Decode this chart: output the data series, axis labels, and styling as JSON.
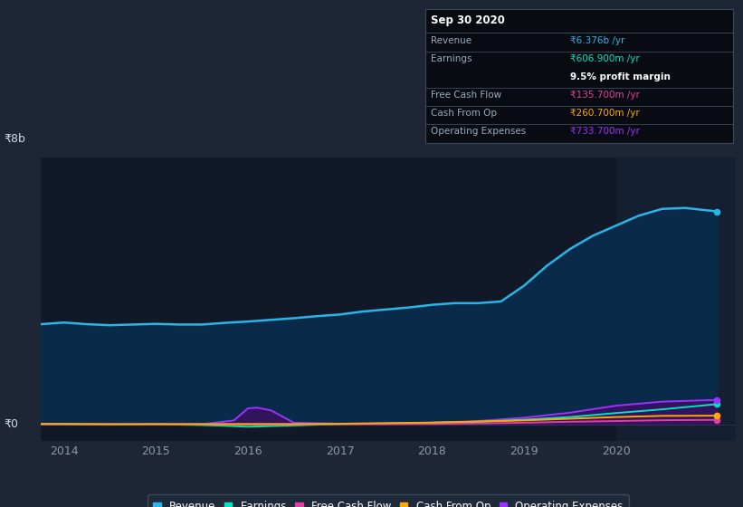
{
  "bg_color": "#1e2535",
  "plot_bg_color": "#111827",
  "grid_color": "#2a3a55",
  "title_label": "₹8b",
  "zero_label": "₹0",
  "xlabel_color": "#8899aa",
  "ylabel_color": "#ccddee",
  "x_ticks": [
    2014,
    2015,
    2016,
    2017,
    2018,
    2019,
    2020
  ],
  "y_min": -500000000.0,
  "y_max": 8000000000.0,
  "revenue_color": "#29b5e8",
  "revenue_fill_color": "#0a2a4a",
  "earnings_color": "#00e5c0",
  "fcf_color": "#e040a0",
  "cashfromop_color": "#ffaa00",
  "opex_color": "#9933ff",
  "opex_fill_color": "#3a1060",
  "highlight_bg": "#141f32",
  "legend_bg": "#1e2a3a",
  "legend_border": "#3a4a5a",
  "tooltip_bg": "#080c12",
  "tooltip_border": "#3a4a5a",
  "revenue_data": {
    "x": [
      2013.75,
      2014.0,
      2014.25,
      2014.5,
      2014.75,
      2015.0,
      2015.25,
      2015.5,
      2015.75,
      2016.0,
      2016.25,
      2016.5,
      2016.75,
      2017.0,
      2017.25,
      2017.5,
      2017.75,
      2018.0,
      2018.25,
      2018.5,
      2018.75,
      2019.0,
      2019.25,
      2019.5,
      2019.75,
      2020.0,
      2020.25,
      2020.5,
      2020.75,
      2021.1
    ],
    "y": [
      3000000000.0,
      3050000000.0,
      3000000000.0,
      2970000000.0,
      2990000000.0,
      3010000000.0,
      2990000000.0,
      2990000000.0,
      3040000000.0,
      3080000000.0,
      3130000000.0,
      3180000000.0,
      3240000000.0,
      3290000000.0,
      3380000000.0,
      3440000000.0,
      3500000000.0,
      3580000000.0,
      3630000000.0,
      3630000000.0,
      3680000000.0,
      4150000000.0,
      4750000000.0,
      5250000000.0,
      5650000000.0,
      5950000000.0,
      6250000000.0,
      6450000000.0,
      6480000000.0,
      6376000000.0
    ]
  },
  "earnings_data": {
    "x": [
      2013.75,
      2014.0,
      2014.5,
      2015.0,
      2015.5,
      2015.75,
      2016.0,
      2016.5,
      2017.0,
      2017.5,
      2018.0,
      2018.5,
      2019.0,
      2019.5,
      2020.0,
      2020.5,
      2021.1
    ],
    "y": [
      10000000.0,
      5000000.0,
      -10000000.0,
      5000000.0,
      -20000000.0,
      -40000000.0,
      -70000000.0,
      -30000000.0,
      10000000.0,
      30000000.0,
      50000000.0,
      80000000.0,
      140000000.0,
      220000000.0,
      340000000.0,
      450000000.0,
      606900000.0
    ]
  },
  "fcf_data": {
    "x": [
      2013.75,
      2014.0,
      2014.5,
      2015.0,
      2015.5,
      2016.0,
      2016.5,
      2017.0,
      2017.5,
      2018.0,
      2018.5,
      2019.0,
      2019.5,
      2020.0,
      2020.5,
      2021.1
    ],
    "y": [
      5000000.0,
      5000000.0,
      3000000.0,
      3000000.0,
      3000000.0,
      3000000.0,
      3000000.0,
      5000000.0,
      8000000.0,
      15000000.0,
      30000000.0,
      50000000.0,
      80000000.0,
      100000000.0,
      125000000.0,
      135700000.0
    ]
  },
  "cashfromop_data": {
    "x": [
      2013.75,
      2014.0,
      2014.5,
      2015.0,
      2015.5,
      2016.0,
      2016.5,
      2017.0,
      2017.5,
      2018.0,
      2018.5,
      2019.0,
      2019.5,
      2020.0,
      2020.5,
      2021.1
    ],
    "y": [
      15000000.0,
      15000000.0,
      10000000.0,
      10000000.0,
      10000000.0,
      10000000.0,
      10000000.0,
      20000000.0,
      35000000.0,
      55000000.0,
      85000000.0,
      120000000.0,
      170000000.0,
      220000000.0,
      255000000.0,
      260700000.0
    ]
  },
  "opex_data": {
    "x": [
      2013.75,
      2014.0,
      2014.5,
      2015.0,
      2015.5,
      2015.85,
      2016.0,
      2016.1,
      2016.25,
      2016.5,
      2017.0,
      2017.5,
      2018.0,
      2018.5,
      2019.0,
      2019.5,
      2020.0,
      2020.5,
      2021.1
    ],
    "y": [
      5000000.0,
      5000000.0,
      3000000.0,
      3000000.0,
      3000000.0,
      120000000.0,
      480000000.0,
      500000000.0,
      420000000.0,
      50000000.0,
      20000000.0,
      30000000.0,
      50000000.0,
      100000000.0,
      200000000.0,
      350000000.0,
      560000000.0,
      680000000.0,
      733700000.0
    ]
  },
  "tooltip": {
    "title": "Sep 30 2020",
    "rows": [
      {
        "label": "Revenue",
        "value": "₹6.376b /yr",
        "value_color": "#29b5e8",
        "sep_after": true
      },
      {
        "label": "Earnings",
        "value": "₹606.900m /yr",
        "value_color": "#00e5c0",
        "sep_after": false
      },
      {
        "label": "",
        "value": "9.5% profit margin",
        "value_color": "#ffffff",
        "sep_after": true,
        "bold": true
      },
      {
        "label": "Free Cash Flow",
        "value": "₹135.700m /yr",
        "value_color": "#e040a0",
        "sep_after": true
      },
      {
        "label": "Cash From Op",
        "value": "₹260.700m /yr",
        "value_color": "#ffaa00",
        "sep_after": true
      },
      {
        "label": "Operating Expenses",
        "value": "₹733.700m /yr",
        "value_color": "#9933ff",
        "sep_after": false
      }
    ]
  },
  "legend_items": [
    {
      "label": "Revenue",
      "color": "#29b5e8"
    },
    {
      "label": "Earnings",
      "color": "#00e5c0"
    },
    {
      "label": "Free Cash Flow",
      "color": "#e040a0"
    },
    {
      "label": "Cash From Op",
      "color": "#ffaa00"
    },
    {
      "label": "Operating Expenses",
      "color": "#9933ff"
    }
  ]
}
